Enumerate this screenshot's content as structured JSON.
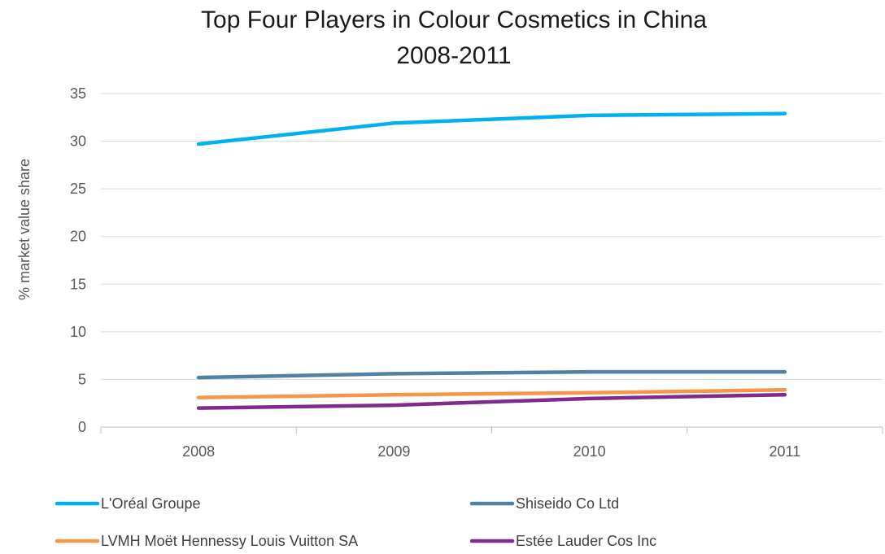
{
  "chart_data": {
    "type": "line",
    "title_line1": "Top Four Players in Colour Cosmetics in China",
    "title_line2": "2008-2011",
    "xlabel": "",
    "ylabel": "% market value share",
    "categories": [
      "2008",
      "2009",
      "2010",
      "2011"
    ],
    "ylim": [
      0,
      35
    ],
    "yticks": [
      0,
      5,
      10,
      15,
      20,
      25,
      30,
      35
    ],
    "grid": true,
    "legend_position": "bottom",
    "series": [
      {
        "name": "L'Oréal Groupe",
        "color": "#00B0F0",
        "values": [
          29.7,
          31.9,
          32.7,
          32.9
        ]
      },
      {
        "name": "Shiseido Co Ltd",
        "color": "#4F81A5",
        "values": [
          5.2,
          5.6,
          5.8,
          5.8
        ]
      },
      {
        "name": "LVMH Moët Hennessy Louis Vuitton SA",
        "color": "#F79646",
        "values": [
          3.1,
          3.4,
          3.6,
          3.9
        ]
      },
      {
        "name": "Estée Lauder Cos Inc",
        "color": "#7F2A8C",
        "values": [
          2.0,
          2.3,
          3.0,
          3.4
        ]
      }
    ]
  }
}
